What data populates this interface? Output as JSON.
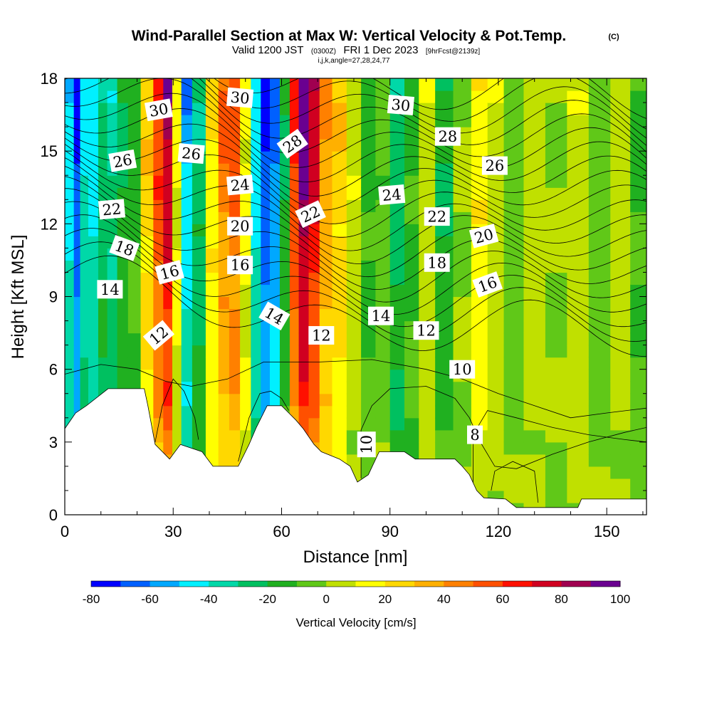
{
  "header": {
    "title": "Wind-Parallel Section at Max W: Vertical Velocity & Pot.Temp.",
    "copyright": "(C)",
    "valid_pre": "Valid 1200 JST",
    "valid_utc": "(0300Z)",
    "valid_post": "FRI 1 Dec 2023",
    "fcst": "[9hrFcst@2139z]",
    "indices": "i,j,k,angle=27,28,24,77"
  },
  "chart_data": {
    "type": "heatmap",
    "xlabel": "Distance [nm]",
    "ylabel": "Height [Kft MSL]",
    "xlim": [
      0,
      161
    ],
    "ylim": [
      0,
      18
    ],
    "x_ticks": [
      0,
      30,
      60,
      90,
      120,
      150
    ],
    "y_ticks": [
      0,
      3,
      6,
      9,
      12,
      15,
      18
    ],
    "colorbar": {
      "label": "Vertical Velocity [cm/s]",
      "ticks": [
        -80,
        -60,
        -40,
        -20,
        0,
        20,
        40,
        60,
        80,
        100
      ],
      "boundaries": [
        -80,
        -70,
        -60,
        -50,
        -40,
        -30,
        -20,
        -10,
        0,
        10,
        20,
        30,
        40,
        50,
        60,
        70,
        80,
        90,
        100
      ],
      "colors": [
        "#0000ff",
        "#0060ff",
        "#00a8ff",
        "#00f0ff",
        "#00d8a8",
        "#00c060",
        "#20b020",
        "#60c818",
        "#c0e000",
        "#ffff00",
        "#ffd800",
        "#ffb000",
        "#ff8000",
        "#ff5000",
        "#ff1000",
        "#d00020",
        "#a00050",
        "#6a0090"
      ]
    },
    "w_columns": [
      {
        "x": 1.5,
        "w": -35
      },
      {
        "x": 3.5,
        "w": -55
      },
      {
        "x": 5,
        "w": -30
      },
      {
        "x": 8,
        "w": -35
      },
      {
        "x": 10.5,
        "w": -20
      },
      {
        "x": 13,
        "w": -25
      },
      {
        "x": 16,
        "w": -15
      },
      {
        "x": 19,
        "w": -10
      },
      {
        "x": 23,
        "w": 20
      },
      {
        "x": 26,
        "w": 45
      },
      {
        "x": 28.5,
        "w": 60
      },
      {
        "x": 31,
        "w": 10
      },
      {
        "x": 33.5,
        "w": -40
      },
      {
        "x": 37,
        "w": -20
      },
      {
        "x": 41,
        "w": 15
      },
      {
        "x": 44,
        "w": 35
      },
      {
        "x": 47,
        "w": 40
      },
      {
        "x": 50,
        "w": 10
      },
      {
        "x": 53,
        "w": -35
      },
      {
        "x": 55.5,
        "w": -55
      },
      {
        "x": 58,
        "w": -45
      },
      {
        "x": 61,
        "w": -15
      },
      {
        "x": 63.5,
        "w": 45
      },
      {
        "x": 66,
        "w": 70
      },
      {
        "x": 69,
        "w": 55
      },
      {
        "x": 72,
        "w": 30
      },
      {
        "x": 76,
        "w": 20
      },
      {
        "x": 80,
        "w": 5
      },
      {
        "x": 84,
        "w": -10
      },
      {
        "x": 88,
        "w": -5
      },
      {
        "x": 92,
        "w": -20
      },
      {
        "x": 96,
        "w": -10
      },
      {
        "x": 100,
        "w": 5
      },
      {
        "x": 105,
        "w": -15
      },
      {
        "x": 110,
        "w": 0
      },
      {
        "x": 115,
        "w": 15
      },
      {
        "x": 119,
        "w": 5
      },
      {
        "x": 124,
        "w": -5
      },
      {
        "x": 130,
        "w": 5
      },
      {
        "x": 136,
        "w": 0
      },
      {
        "x": 142,
        "w": 5
      },
      {
        "x": 148,
        "w": -5
      },
      {
        "x": 154,
        "w": 5
      },
      {
        "x": 159,
        "w": -10
      }
    ],
    "terrain_kft": [
      {
        "x": 0,
        "h": 3.55
      },
      {
        "x": 3,
        "h": 4.2
      },
      {
        "x": 6,
        "h": 4.5
      },
      {
        "x": 9,
        "h": 4.85
      },
      {
        "x": 12,
        "h": 5.2
      },
      {
        "x": 22,
        "h": 5.2
      },
      {
        "x": 23,
        "h": 4.5
      },
      {
        "x": 25,
        "h": 2.9
      },
      {
        "x": 29,
        "h": 2.3
      },
      {
        "x": 32,
        "h": 2.9
      },
      {
        "x": 38,
        "h": 2.6
      },
      {
        "x": 41,
        "h": 2.0
      },
      {
        "x": 48,
        "h": 2.0
      },
      {
        "x": 51,
        "h": 2.9
      },
      {
        "x": 53,
        "h": 3.6
      },
      {
        "x": 56,
        "h": 4.5
      },
      {
        "x": 60,
        "h": 4.5
      },
      {
        "x": 62,
        "h": 4.2
      },
      {
        "x": 64,
        "h": 3.9
      },
      {
        "x": 66,
        "h": 3.55
      },
      {
        "x": 69,
        "h": 2.9
      },
      {
        "x": 71,
        "h": 2.6
      },
      {
        "x": 76,
        "h": 2.3
      },
      {
        "x": 79,
        "h": 2.0
      },
      {
        "x": 81,
        "h": 1.35
      },
      {
        "x": 84,
        "h": 1.65
      },
      {
        "x": 87,
        "h": 2.6
      },
      {
        "x": 94,
        "h": 2.6
      },
      {
        "x": 97,
        "h": 2.3
      },
      {
        "x": 108,
        "h": 2.3
      },
      {
        "x": 110,
        "h": 2.0
      },
      {
        "x": 112,
        "h": 1.65
      },
      {
        "x": 114,
        "h": 1.0
      },
      {
        "x": 116,
        "h": 0.7
      },
      {
        "x": 122,
        "h": 0.65
      },
      {
        "x": 125,
        "h": 0.3
      },
      {
        "x": 142,
        "h": 0.3
      },
      {
        "x": 143,
        "h": 0.65
      },
      {
        "x": 161,
        "h": 0.65
      }
    ],
    "theta_contours": [
      8,
      10,
      12,
      14,
      16,
      18,
      20,
      22,
      24,
      26,
      28,
      30
    ],
    "contour_labels": [
      {
        "text": "30",
        "x": 26,
        "y": 16.7,
        "angle": -10
      },
      {
        "text": "30",
        "x": 48.5,
        "y": 17.2,
        "angle": 5
      },
      {
        "text": "30",
        "x": 93,
        "y": 16.9,
        "angle": 5
      },
      {
        "text": "28",
        "x": 63,
        "y": 15.3,
        "angle": -35
      },
      {
        "text": "28",
        "x": 106,
        "y": 15.6,
        "angle": 0
      },
      {
        "text": "26",
        "x": 16,
        "y": 14.6,
        "angle": -10
      },
      {
        "text": "26",
        "x": 35,
        "y": 14.9,
        "angle": 5
      },
      {
        "text": "26",
        "x": 119,
        "y": 14.4,
        "angle": 0
      },
      {
        "text": "24",
        "x": 48.5,
        "y": 13.6,
        "angle": -5
      },
      {
        "text": "24",
        "x": 90.5,
        "y": 13.2,
        "angle": -5
      },
      {
        "text": "22",
        "x": 13,
        "y": 12.6,
        "angle": -5
      },
      {
        "text": "22",
        "x": 68,
        "y": 12.4,
        "angle": -25
      },
      {
        "text": "22",
        "x": 103,
        "y": 12.3,
        "angle": 0
      },
      {
        "text": "20",
        "x": 48.5,
        "y": 11.9,
        "angle": 0
      },
      {
        "text": "20",
        "x": 116,
        "y": 11.5,
        "angle": -15
      },
      {
        "text": "18",
        "x": 16.5,
        "y": 11.0,
        "angle": 20
      },
      {
        "text": "18",
        "x": 103,
        "y": 10.4,
        "angle": 0
      },
      {
        "text": "16",
        "x": 29,
        "y": 10.0,
        "angle": -15
      },
      {
        "text": "16",
        "x": 48.5,
        "y": 10.3,
        "angle": 0
      },
      {
        "text": "16",
        "x": 117,
        "y": 9.5,
        "angle": -20
      },
      {
        "text": "14",
        "x": 12.5,
        "y": 9.3,
        "angle": 0
      },
      {
        "text": "14",
        "x": 58,
        "y": 8.2,
        "angle": 30
      },
      {
        "text": "14",
        "x": 87.5,
        "y": 8.2,
        "angle": 0
      },
      {
        "text": "12",
        "x": 26,
        "y": 7.4,
        "angle": -40
      },
      {
        "text": "12",
        "x": 71,
        "y": 7.4,
        "angle": 0
      },
      {
        "text": "12",
        "x": 100,
        "y": 7.6,
        "angle": 0
      },
      {
        "text": "10",
        "x": 110,
        "y": 6.0,
        "angle": 0
      },
      {
        "text": "10",
        "x": 83.5,
        "y": 2.9,
        "angle": -90
      },
      {
        "text": "8",
        "x": 113.5,
        "y": 3.3,
        "angle": 0
      }
    ]
  }
}
